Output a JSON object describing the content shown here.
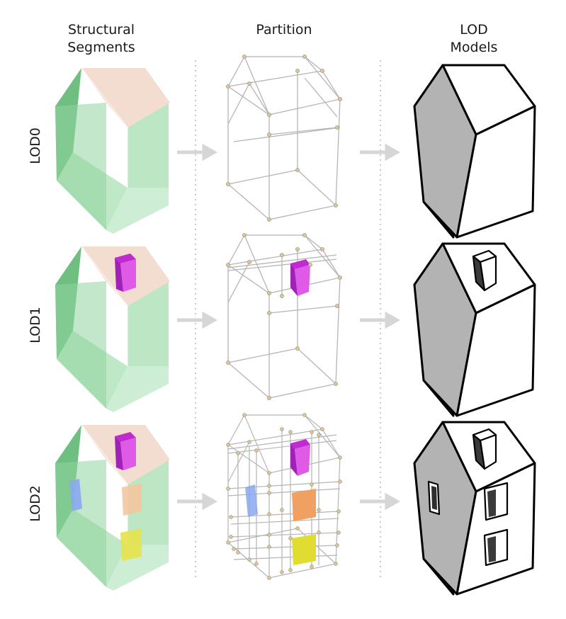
{
  "columns": [
    {
      "id": "segments",
      "title": "Structural\nSegments"
    },
    {
      "id": "partition",
      "title": "Partition"
    },
    {
      "id": "models",
      "title": "LOD\nModels"
    }
  ],
  "rows": [
    {
      "id": "lod0",
      "label": "LOD0"
    },
    {
      "id": "lod1",
      "label": "LOD1"
    },
    {
      "id": "lod2",
      "label": "LOD2"
    }
  ],
  "colors": {
    "wall_green": "#9fd9a8",
    "roof_pink": "#f0d8c8",
    "chimney_magenta": "#d63fe0",
    "window_blue": "#8aa8f0",
    "window_orange": "#f0a060",
    "window_yellow": "#e0dc30",
    "wire_gray": "#b8b8b8",
    "vertex_tan": "#d8c8a0",
    "arrow_gray": "#d6d6d6"
  }
}
